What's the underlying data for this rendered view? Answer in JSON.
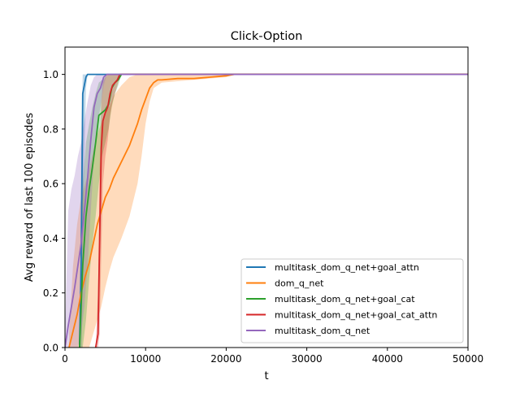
{
  "chart_data": {
    "type": "line",
    "title": "Click-Option",
    "xlabel": "t",
    "ylabel": "Avg reward of last 100 episodes",
    "xlim": [
      0,
      50000
    ],
    "ylim": [
      0,
      1.1
    ],
    "xticks": [
      0,
      10000,
      20000,
      30000,
      40000,
      50000
    ],
    "xtick_labels": [
      "0",
      "10000",
      "20000",
      "30000",
      "40000",
      "50000"
    ],
    "yticks": [
      0,
      0.2,
      0.4,
      0.6,
      0.8,
      1.0
    ],
    "ytick_labels": [
      "0.0",
      "0.2",
      "0.4",
      "0.6",
      "0.8",
      "1.0"
    ],
    "grid": false,
    "legend_position": "lower-right",
    "series": [
      {
        "name": "multitask_dom_q_net+goal_attn",
        "color": "#1f77b4",
        "x": [
          1800,
          2000,
          2100,
          2200,
          2400,
          2600,
          2800,
          3000,
          50000
        ],
        "y": [
          0.0,
          0.3,
          0.6,
          0.93,
          0.96,
          0.99,
          1.0,
          1.0,
          1.0
        ],
        "band_lower": [
          0.0,
          0.0,
          0.0,
          0.4,
          0.7,
          0.95,
          1.0,
          1.0,
          1.0
        ],
        "band_upper": [
          0.0,
          0.65,
          0.85,
          1.0,
          1.0,
          1.0,
          1.0,
          1.0,
          1.0
        ]
      },
      {
        "name": "dom_q_net",
        "color": "#ff7f0e",
        "x": [
          500,
          1000,
          1500,
          2000,
          2500,
          3000,
          3500,
          4000,
          4500,
          5000,
          5500,
          6000,
          7000,
          8000,
          9000,
          9500,
          10000,
          10500,
          11000,
          11500,
          12000,
          14000,
          16000,
          18000,
          20000,
          21000,
          50000
        ],
        "y": [
          0.0,
          0.06,
          0.12,
          0.2,
          0.26,
          0.31,
          0.38,
          0.45,
          0.5,
          0.55,
          0.58,
          0.62,
          0.68,
          0.74,
          0.82,
          0.87,
          0.91,
          0.95,
          0.97,
          0.98,
          0.98,
          0.985,
          0.985,
          0.99,
          0.995,
          1.0,
          1.0
        ],
        "band_lower": [
          0.0,
          0.0,
          0.0,
          0.0,
          0.0,
          0.0,
          0.05,
          0.1,
          0.15,
          0.22,
          0.28,
          0.33,
          0.4,
          0.48,
          0.6,
          0.7,
          0.82,
          0.9,
          0.95,
          0.96,
          0.97,
          0.975,
          0.98,
          0.985,
          0.99,
          1.0,
          1.0
        ],
        "band_upper": [
          0.05,
          0.3,
          0.45,
          0.55,
          0.6,
          0.65,
          0.72,
          0.78,
          0.82,
          0.86,
          0.88,
          0.92,
          0.96,
          0.99,
          1.0,
          1.0,
          1.0,
          1.0,
          1.0,
          1.0,
          1.0,
          1.0,
          1.0,
          1.0,
          1.0,
          1.0,
          1.0
        ]
      },
      {
        "name": "multitask_dom_q_net+goal_cat",
        "color": "#2ca02c",
        "x": [
          1800,
          2200,
          2600,
          3000,
          3400,
          3800,
          4200,
          4600,
          5000,
          5400,
          5800,
          6200,
          6600,
          7000,
          50000
        ],
        "y": [
          0.0,
          0.3,
          0.48,
          0.58,
          0.66,
          0.75,
          0.85,
          0.86,
          0.87,
          0.89,
          0.95,
          0.97,
          0.98,
          1.0,
          1.0
        ],
        "band_lower": [
          0.0,
          0.0,
          0.1,
          0.25,
          0.38,
          0.48,
          0.6,
          0.7,
          0.75,
          0.8,
          0.88,
          0.93,
          0.96,
          1.0,
          1.0
        ],
        "band_upper": [
          0.0,
          0.6,
          0.75,
          0.82,
          0.88,
          0.93,
          0.97,
          0.98,
          0.99,
          1.0,
          1.0,
          1.0,
          1.0,
          1.0,
          1.0
        ]
      },
      {
        "name": "multitask_dom_q_net+goal_cat_attn",
        "color": "#d62728",
        "x": [
          3800,
          4100,
          4300,
          4500,
          4700,
          5000,
          5300,
          5600,
          5900,
          6200,
          6500,
          6800,
          50000
        ],
        "y": [
          0.0,
          0.05,
          0.4,
          0.73,
          0.83,
          0.86,
          0.88,
          0.93,
          0.96,
          0.97,
          0.98,
          1.0,
          1.0
        ],
        "band_lower": [
          0.0,
          0.0,
          0.05,
          0.35,
          0.6,
          0.7,
          0.76,
          0.85,
          0.9,
          0.93,
          0.96,
          1.0,
          1.0
        ],
        "band_upper": [
          0.0,
          0.2,
          0.65,
          0.9,
          0.97,
          0.99,
          1.0,
          1.0,
          1.0,
          1.0,
          1.0,
          1.0,
          1.0
        ]
      },
      {
        "name": "multitask_dom_q_net",
        "color": "#9467bd",
        "x": [
          0,
          400,
          800,
          1200,
          1600,
          2000,
          2400,
          2800,
          3200,
          3600,
          4000,
          4400,
          4800,
          5200,
          5600,
          6000,
          50000
        ],
        "y": [
          0.0,
          0.08,
          0.15,
          0.22,
          0.3,
          0.38,
          0.5,
          0.62,
          0.76,
          0.88,
          0.93,
          0.95,
          0.99,
          1.0,
          1.0,
          1.0,
          1.0
        ],
        "band_lower": [
          0.0,
          0.0,
          0.0,
          0.0,
          0.0,
          0.05,
          0.15,
          0.3,
          0.5,
          0.7,
          0.82,
          0.88,
          0.96,
          1.0,
          1.0,
          1.0,
          1.0
        ],
        "band_upper": [
          0.05,
          0.5,
          0.58,
          0.63,
          0.7,
          0.75,
          0.83,
          0.9,
          0.96,
          0.99,
          1.0,
          1.0,
          1.0,
          1.0,
          1.0,
          1.0,
          1.0
        ]
      }
    ]
  }
}
